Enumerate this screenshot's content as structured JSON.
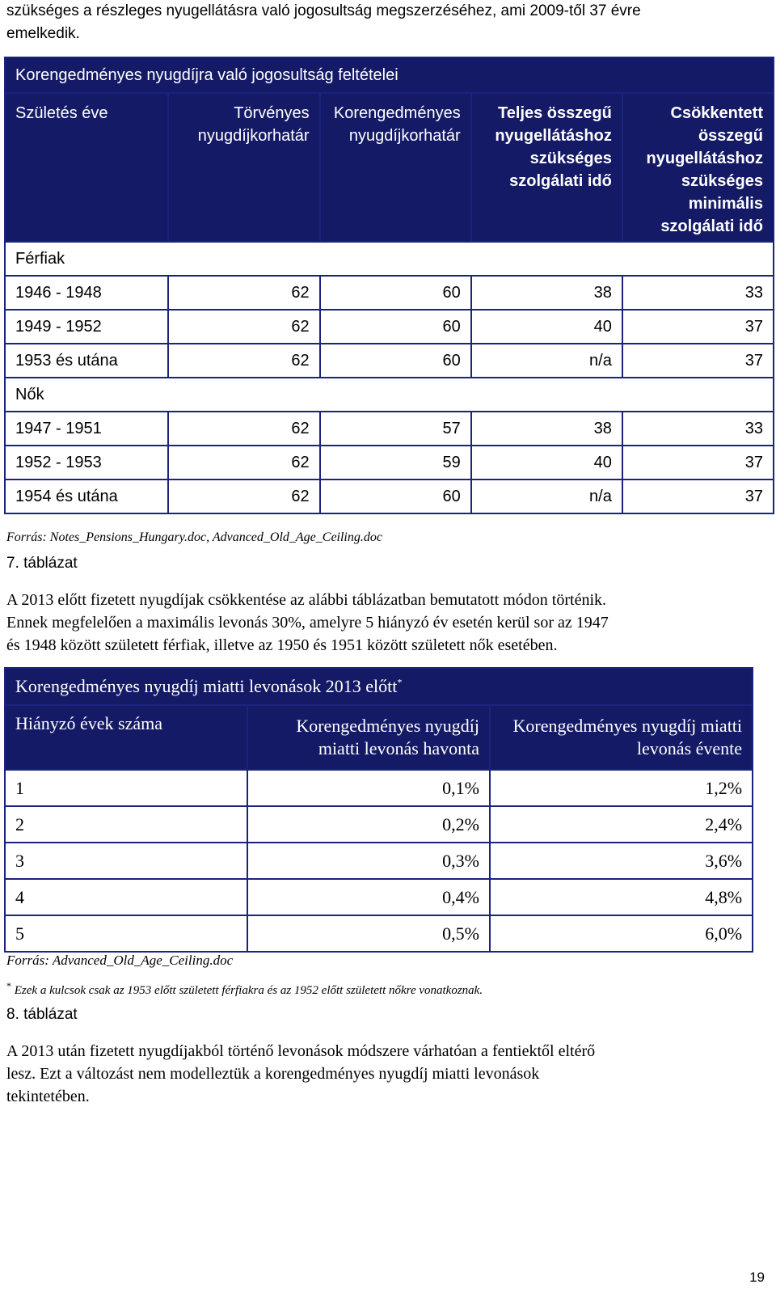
{
  "top_text": {
    "line1": "szükséges a részleges nyugellátásra való jogosultság megszerzéséhez, ami 2009-től 37 évre",
    "line2": "emelkedik."
  },
  "table7": {
    "title": "Korengedményes nyugdíjra való jogosultság feltételei",
    "headers": [
      "Születés éve",
      "Törvényes nyugdíjkorhatár",
      "Korengedményes nyugdíjkorhatár",
      "Teljes összegű nyugellátáshoz szükséges szolgálati idő",
      "Csökkentett összegű nyugellátáshoz szükséges minimális szolgálati idő"
    ],
    "group_men": "Férfiak",
    "men_rows": [
      [
        "1946 - 1948",
        "62",
        "60",
        "38",
        "33"
      ],
      [
        "1949 - 1952",
        "62",
        "60",
        "40",
        "37"
      ],
      [
        "1953 és utána",
        "62",
        "60",
        "n/a",
        "37"
      ]
    ],
    "group_women": "Nők",
    "women_rows": [
      [
        "1947 - 1951",
        "62",
        "57",
        "38",
        "33"
      ],
      [
        "1952 - 1953",
        "62",
        "59",
        "40",
        "37"
      ],
      [
        "1954 és utána",
        "62",
        "60",
        "n/a",
        "37"
      ]
    ],
    "source": "Forrás: Notes_Pensions_Hungary.doc, Advanced_Old_Age_Ceiling.doc",
    "caption": "7. táblázat"
  },
  "para1": {
    "line1": "A 2013 előtt fizetett nyugdíjak csökkentése az alábbi táblázatban bemutatott módon történik.",
    "line2": "Ennek megfelelően a maximális levonás 30%, amelyre 5 hiányzó év esetén kerül sor az 1947",
    "line3": "és 1948 között született férfiak, illetve az 1950 és 1951 között született nők esetében."
  },
  "table8": {
    "title": "Korengedményes nyugdíj miatti levonások 2013 előtt",
    "title_mark": "*",
    "headers": [
      "Hiányzó évek száma",
      "Korengedményes nyugdíj miatti levonás havonta",
      "Korengedményes nyugdíj miatti levonás évente"
    ],
    "rows": [
      [
        "1",
        "0,1%",
        "1,2%"
      ],
      [
        "2",
        "0,2%",
        "2,4%"
      ],
      [
        "3",
        "0,3%",
        "3,6%"
      ],
      [
        "4",
        "0,4%",
        "4,8%"
      ],
      [
        "5",
        "0,5%",
        "6,0%"
      ]
    ],
    "source": "Forrás: Advanced_Old_Age_Ceiling.doc",
    "footnote_mark": "*",
    "footnote": "Ezek a kulcsok csak az 1953 előtt született férfiakra és az 1952 előtt született nőkre vonatkoznak.",
    "caption": "8. táblázat"
  },
  "para2": {
    "line1": "A 2013 után fizetett nyugdíjakból történő levonások módszere várhatóan a fentiektől eltérő",
    "line2": "lesz. Ezt a változást nem modelleztük a korengedményes nyugdíj miatti levonások",
    "line3": "tekintetében."
  },
  "page_number": "19"
}
